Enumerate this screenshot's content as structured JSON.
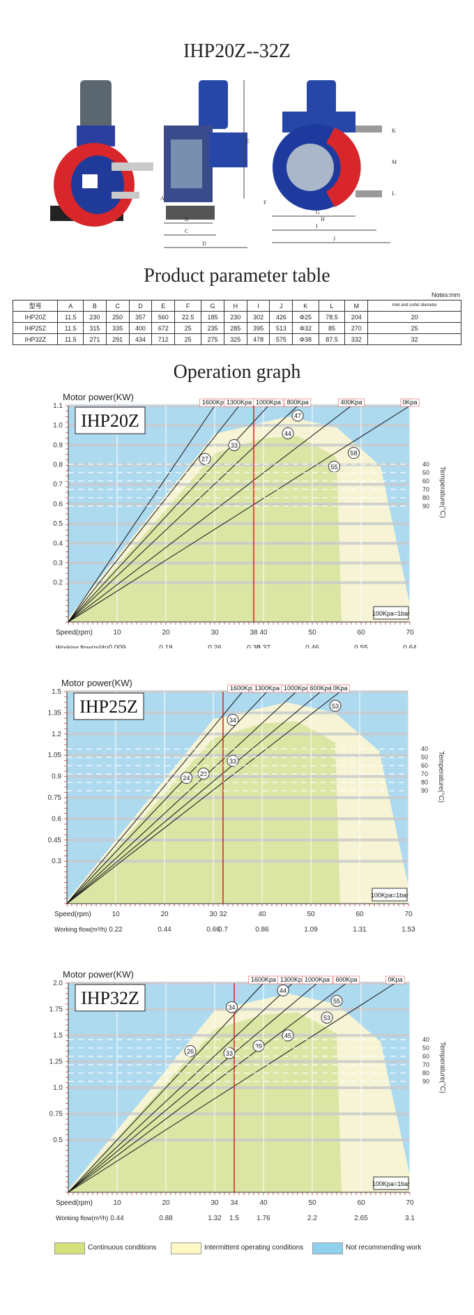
{
  "page_title": "IHP20Z--32Z",
  "dimension_labels": [
    "A",
    "B",
    "C",
    "D",
    "E",
    "F",
    "G",
    "H",
    "I",
    "J",
    "K",
    "L",
    "M"
  ],
  "params_title": "Product parameter table",
  "notes": "Notes:mm",
  "param_table": {
    "headers": [
      "型号",
      "A",
      "B",
      "C",
      "D",
      "E",
      "F",
      "G",
      "H",
      "I",
      "J",
      "K",
      "L",
      "M",
      "Inlet and outlet diameter"
    ],
    "rows": [
      [
        "IHP20Z",
        "11.5",
        "230",
        "250",
        "357",
        "560",
        "22.5",
        "185",
        "230",
        "302",
        "426",
        "Φ25",
        "78.5",
        "204",
        "20"
      ],
      [
        "IHP25Z",
        "11.5",
        "315",
        "335",
        "400",
        "672",
        "25",
        "235",
        "285",
        "395",
        "513",
        "Φ32",
        "85",
        "270",
        "25"
      ],
      [
        "IHP32Z",
        "11.5",
        "271",
        "291",
        "434",
        "712",
        "25",
        "275",
        "325",
        "478",
        "575",
        "Φ38",
        "87.5",
        "332",
        "32"
      ]
    ]
  },
  "graph_title": "Operation graph",
  "common": {
    "ylabel": "Motor power(KW)",
    "speed_label": "Speed(rpm)",
    "flow_label": "Working flow(m³/h)",
    "note": "100Kpa=1bar",
    "temp_label": "Temperature(°C)",
    "temp_ticks": [
      "40",
      "50",
      "60",
      "70",
      "80",
      "90"
    ]
  },
  "colors": {
    "background": "#e6edf1",
    "continuous": "#d5e27c",
    "intermittent": "#fdf8c4",
    "not_recommended": "#8fd0ef",
    "marker": "#d62020",
    "grid_band": "#c7c9cc"
  },
  "chart_data": [
    {
      "type": "line",
      "model": "IHP20Z",
      "ylim": [
        0,
        1.1
      ],
      "xlim": [
        0,
        70
      ],
      "y_ticks": [
        "0.2",
        "0.3",
        "0.4",
        "0.5",
        "0.6",
        "0.7",
        "0.8",
        "0.9",
        "1.0",
        "1.1"
      ],
      "x_ticks": [
        "10",
        "20",
        "30",
        "38",
        "40",
        "50",
        "60",
        "70"
      ],
      "flow_ticks": [
        "0.009",
        "0.18",
        "0.26",
        "0.35",
        "0.37",
        "0.46",
        "0.55",
        "0.64"
      ],
      "marker_rpm": 38,
      "series": [
        {
          "name": "1600Kpa",
          "end": [
            30,
            1.1
          ]
        },
        {
          "name": "1300Kpa",
          "end": [
            35,
            1.1
          ]
        },
        {
          "name": "1000Kpa",
          "end": [
            41,
            1.1
          ]
        },
        {
          "name": "800Kpa",
          "end": [
            47,
            1.1
          ]
        },
        {
          "name": "400Kpa",
          "end": [
            58,
            1.1
          ]
        },
        {
          "name": "0Kpa",
          "end": [
            70,
            1.1
          ]
        }
      ],
      "labels": [
        {
          "text": "27",
          "x": 28,
          "y": 0.83
        },
        {
          "text": "33",
          "x": 34,
          "y": 0.9
        },
        {
          "text": "44",
          "x": 45,
          "y": 0.96
        },
        {
          "text": "47",
          "x": 47,
          "y": 1.05
        },
        {
          "text": "55",
          "x": 54.5,
          "y": 0.79
        },
        {
          "text": "58",
          "x": 58.5,
          "y": 0.86
        }
      ]
    },
    {
      "type": "line",
      "model": "IHP25Z",
      "ylim": [
        0,
        1.5
      ],
      "xlim": [
        0,
        70
      ],
      "y_ticks": [
        "0.3",
        "0.45",
        "0.6",
        "0.75",
        "0.9",
        "1.05",
        "1.2",
        "1.35",
        "1.5"
      ],
      "x_ticks": [
        "10",
        "20",
        "30",
        "32",
        "40",
        "50",
        "60",
        "70"
      ],
      "flow_ticks": [
        "0.22",
        "0.44",
        "0.66",
        "0.7",
        "0.86",
        "1.09",
        "1.31",
        "1.53"
      ],
      "marker_rpm": 32,
      "series": [
        {
          "name": "1600Kpa",
          "end": [
            36,
            1.5
          ]
        },
        {
          "name": "1300Kpa",
          "end": [
            41,
            1.5
          ]
        },
        {
          "name": "1000Kpa",
          "end": [
            47,
            1.5
          ]
        },
        {
          "name": "600Kpa",
          "end": [
            52,
            1.5
          ]
        },
        {
          "name": "0Kpa",
          "end": [
            56,
            1.5
          ]
        }
      ],
      "labels": [
        {
          "text": "34",
          "x": 34,
          "y": 1.3
        },
        {
          "text": "33",
          "x": 34,
          "y": 1.01
        },
        {
          "text": "29",
          "x": 28,
          "y": 0.92
        },
        {
          "text": "24",
          "x": 24.5,
          "y": 0.89
        },
        {
          "text": "53",
          "x": 55,
          "y": 1.4
        }
      ]
    },
    {
      "type": "line",
      "model": "IHP32Z",
      "ylim": [
        0,
        2.0
      ],
      "xlim": [
        0,
        70
      ],
      "y_ticks": [
        "0.5",
        "0.75",
        "1.0",
        "1.25",
        "1.5",
        "1.75",
        "2.0"
      ],
      "x_ticks": [
        "10",
        "20",
        "30",
        "34",
        "40",
        "50",
        "60",
        "70"
      ],
      "flow_ticks": [
        "0.44",
        "0.88",
        "1.32",
        "1.5",
        "1.76",
        "2.2",
        "2.65",
        "3.1"
      ],
      "marker_rpm": 34,
      "series": [
        {
          "name": "1600Kpa",
          "end": [
            40,
            2.0
          ]
        },
        {
          "name": "1300Kpa",
          "end": [
            46,
            2.0
          ]
        },
        {
          "name": "1000Kpa",
          "end": [
            51,
            2.0
          ]
        },
        {
          "name": "600Kpa",
          "end": [
            57,
            2.0
          ]
        },
        {
          "name": "0Kpa",
          "end": [
            67,
            2.0
          ]
        }
      ],
      "labels": [
        {
          "text": "34",
          "x": 33.5,
          "y": 1.77
        },
        {
          "text": "44",
          "x": 44,
          "y": 1.93
        },
        {
          "text": "55",
          "x": 55,
          "y": 1.83
        },
        {
          "text": "53",
          "x": 53,
          "y": 1.67
        },
        {
          "text": "45",
          "x": 45,
          "y": 1.5
        },
        {
          "text": "39",
          "x": 39,
          "y": 1.4
        },
        {
          "text": "33",
          "x": 33,
          "y": 1.33
        },
        {
          "text": "26",
          "x": 25,
          "y": 1.35
        }
      ]
    }
  ],
  "legend": [
    {
      "label": "Continuous conditions",
      "color": "#d5e27c"
    },
    {
      "label": "Intermittent operating conditions",
      "color": "#fdf8c4"
    },
    {
      "label": "Not recommending work",
      "color": "#8fd0ef"
    }
  ]
}
